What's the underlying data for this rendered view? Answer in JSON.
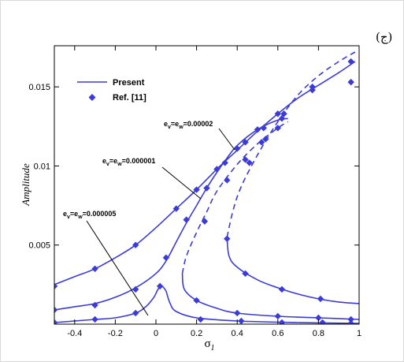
{
  "corner_label": "(ج)",
  "colors": {
    "series": "#3b3bd6",
    "axis": "#000000"
  },
  "chart_data": {
    "type": "line",
    "xlabel": "σ1",
    "ylabel": "Amplitude",
    "xlim": [
      -0.5,
      1.0
    ],
    "ylim": [
      0,
      0.0176
    ],
    "xticks": [
      -0.4,
      -0.2,
      0,
      0.2,
      0.4,
      0.6,
      0.8,
      1
    ],
    "xtick_labels": [
      "-0.4",
      "-0.2",
      "0",
      "0.2",
      "0.4",
      "0.6",
      "0.8",
      "1"
    ],
    "yticks": [
      0.005,
      0.01,
      0.015
    ],
    "ytick_labels": [
      "0.005",
      "0.01",
      "0.015"
    ],
    "grid": false,
    "legend": {
      "placement": "top-left",
      "entries": [
        {
          "label": "Present",
          "marker": "line"
        },
        {
          "label": "Ref. [11]",
          "marker": "diamond"
        }
      ]
    },
    "annotations": [
      {
        "text": "ev=ew=0.00002",
        "target": [
          0.37,
          0.0124
        ]
      },
      {
        "text": "ev=ew=0.000001",
        "target": [
          0.23,
          0.0082
        ]
      },
      {
        "text": "ev=ew=0.000005",
        "target": [
          0.03,
          0.0004
        ]
      }
    ],
    "series": [
      {
        "stable_upper": [
          [
            -0.5,
            0.0025
          ],
          [
            -0.4,
            0.003
          ],
          [
            -0.3,
            0.0035
          ],
          [
            -0.2,
            0.0042
          ],
          [
            -0.1,
            0.005
          ],
          [
            0,
            0.0061
          ],
          [
            0.1,
            0.0073
          ],
          [
            0.2,
            0.0085
          ],
          [
            0.3,
            0.0098
          ],
          [
            0.4,
            0.011
          ],
          [
            0.5,
            0.0122
          ],
          [
            0.6,
            0.0133
          ],
          [
            0.7,
            0.0143
          ],
          [
            0.8,
            0.0151
          ],
          [
            0.9,
            0.0159
          ],
          [
            0.98,
            0.0166
          ]
        ],
        "unstable": [
          [
            0.35,
            0.0055
          ],
          [
            0.38,
            0.0072
          ],
          [
            0.42,
            0.0087
          ],
          [
            0.5,
            0.0107
          ],
          [
            0.6,
            0.0128
          ],
          [
            0.7,
            0.0145
          ],
          [
            0.8,
            0.0157
          ],
          [
            0.9,
            0.0166
          ],
          [
            0.98,
            0.0172
          ]
        ],
        "stable_lower": [
          [
            0.35,
            0.0055
          ],
          [
            0.36,
            0.0043
          ],
          [
            0.4,
            0.0036
          ],
          [
            0.5,
            0.0028
          ],
          [
            0.6,
            0.0023
          ],
          [
            0.7,
            0.0019
          ],
          [
            0.8,
            0.0016
          ],
          [
            0.9,
            0.0014
          ],
          [
            1.0,
            0.0013
          ]
        ],
        "ref_points": [
          [
            -0.5,
            0.0024
          ],
          [
            -0.3,
            0.0035
          ],
          [
            -0.1,
            0.005
          ],
          [
            0.1,
            0.0073
          ],
          [
            0.2,
            0.0085
          ],
          [
            0.3,
            0.0098
          ],
          [
            0.4,
            0.0111
          ],
          [
            0.5,
            0.0123
          ],
          [
            0.6,
            0.0133
          ],
          [
            0.77,
            0.015
          ],
          [
            0.96,
            0.0166
          ],
          [
            0.46,
            0.0102
          ],
          [
            0.54,
            0.0117
          ],
          [
            0.63,
            0.0133
          ],
          [
            0.77,
            0.0148
          ],
          [
            0.96,
            0.0153
          ],
          [
            0.35,
            0.0054
          ],
          [
            0.44,
            0.0032
          ],
          [
            0.62,
            0.0022
          ],
          [
            0.81,
            0.0016
          ]
        ]
      },
      {
        "stable_upper": [
          [
            -0.5,
            0.0009
          ],
          [
            -0.4,
            0.0011
          ],
          [
            -0.3,
            0.0013
          ],
          [
            -0.2,
            0.0017
          ],
          [
            -0.1,
            0.0023
          ],
          [
            0,
            0.0032
          ],
          [
            0.05,
            0.004
          ],
          [
            0.1,
            0.0052
          ],
          [
            0.15,
            0.0064
          ],
          [
            0.2,
            0.0075
          ],
          [
            0.25,
            0.0086
          ],
          [
            0.3,
            0.0096
          ],
          [
            0.35,
            0.0105
          ],
          [
            0.4,
            0.0113
          ],
          [
            0.5,
            0.0123
          ],
          [
            0.6,
            0.0129
          ],
          [
            0.65,
            0.013
          ]
        ],
        "unstable": [
          [
            0.13,
            0.0032
          ],
          [
            0.15,
            0.0043
          ],
          [
            0.2,
            0.0058
          ],
          [
            0.25,
            0.0071
          ],
          [
            0.3,
            0.0084
          ],
          [
            0.4,
            0.0101
          ],
          [
            0.5,
            0.0114
          ],
          [
            0.6,
            0.0124
          ],
          [
            0.65,
            0.0128
          ]
        ],
        "stable_lower": [
          [
            0.13,
            0.0032
          ],
          [
            0.14,
            0.0022
          ],
          [
            0.2,
            0.0015
          ],
          [
            0.3,
            0.001
          ],
          [
            0.4,
            0.0007
          ],
          [
            0.6,
            0.0005
          ],
          [
            0.8,
            0.0004
          ],
          [
            1.0,
            0.0003
          ]
        ],
        "ref_points": [
          [
            -0.5,
            0.0009
          ],
          [
            -0.3,
            0.0012
          ],
          [
            -0.1,
            0.0022
          ],
          [
            0.05,
            0.0042
          ],
          [
            0.15,
            0.0066
          ],
          [
            0.25,
            0.0086
          ],
          [
            0.34,
            0.0102
          ],
          [
            0.44,
            0.0115
          ],
          [
            0.53,
            0.0124
          ],
          [
            0.62,
            0.013
          ],
          [
            0.2,
            0.0015
          ],
          [
            0.4,
            0.0007
          ],
          [
            0.6,
            0.0005
          ],
          [
            0.8,
            0.0004
          ],
          [
            0.96,
            0.0003
          ],
          [
            0.24,
            0.0065
          ],
          [
            0.35,
            0.0091
          ],
          [
            0.44,
            0.0104
          ],
          [
            0.52,
            0.0115
          ],
          [
            0.6,
            0.0124
          ]
        ]
      },
      {
        "stable_upper": [
          [
            -0.5,
            0.0001
          ],
          [
            -0.4,
            0.0002
          ],
          [
            -0.3,
            0.0003
          ],
          [
            -0.2,
            0.0004
          ],
          [
            -0.1,
            0.0007
          ],
          [
            -0.05,
            0.0011
          ],
          [
            -0.01,
            0.0017
          ],
          [
            0.01,
            0.0022
          ],
          [
            0.03,
            0.0024
          ],
          [
            0.05,
            0.0021
          ]
        ],
        "unstable": [],
        "stable_lower": [
          [
            0.05,
            0.0021
          ],
          [
            0.07,
            0.0013
          ],
          [
            0.1,
            0.0008
          ],
          [
            0.2,
            0.0004
          ],
          [
            0.4,
            0.0002
          ],
          [
            0.7,
            0.0001
          ],
          [
            1.0,
            5e-05
          ]
        ],
        "ref_points": [
          [
            -0.5,
            0.0001
          ],
          [
            -0.3,
            0.0003
          ],
          [
            -0.1,
            0.0007
          ],
          [
            0.02,
            0.0024
          ],
          [
            0.22,
            0.0003
          ],
          [
            0.42,
            0.0002
          ],
          [
            0.62,
            0.0001
          ],
          [
            0.82,
            0.0001
          ],
          [
            0.96,
            5e-05
          ]
        ]
      }
    ]
  }
}
